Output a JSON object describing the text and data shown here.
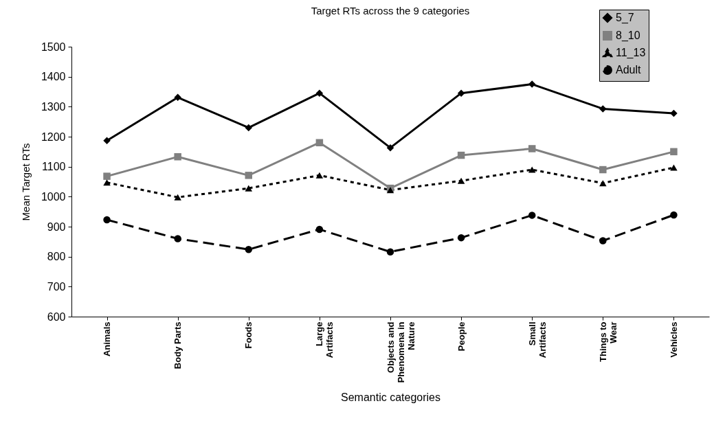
{
  "chart_data": {
    "type": "line",
    "title": "Target RTs across the 9 categories",
    "xlabel": "Semantic categories",
    "ylabel": "Mean Target RTs",
    "categories": [
      "Animals",
      "Body Parts",
      "Foods",
      "Large Artifacts",
      "Objects and Phenomena in Nature",
      "People",
      "Small Artifacts",
      "Things to Wear",
      "Vehicles"
    ],
    "series": [
      {
        "name": "5_7",
        "color": "#000000",
        "marker": "diamond",
        "line_style": "solid",
        "values": [
          1187,
          1331,
          1230,
          1345,
          1163,
          1345,
          1375,
          1293,
          1278
        ]
      },
      {
        "name": "8_10",
        "color": "#808080",
        "marker": "square",
        "line_style": "solid",
        "values": [
          1068,
          1133,
          1071,
          1180,
          1028,
          1138,
          1160,
          1090,
          1150
        ]
      },
      {
        "name": "11_13",
        "color": "#000000",
        "marker": "triangle",
        "line_style": "dotted",
        "values": [
          1047,
          998,
          1028,
          1071,
          1022,
          1053,
          1090,
          1045,
          1097
        ]
      },
      {
        "name": "Adult",
        "color": "#000000",
        "marker": "circle",
        "line_style": "dashed",
        "values": [
          923,
          860,
          824,
          891,
          816,
          863,
          938,
          853,
          939
        ]
      }
    ],
    "ylim": [
      600,
      1500
    ],
    "yticks": [
      600,
      700,
      800,
      900,
      1000,
      1100,
      1200,
      1300,
      1400,
      1500
    ],
    "grid": false,
    "legend": "top right"
  }
}
